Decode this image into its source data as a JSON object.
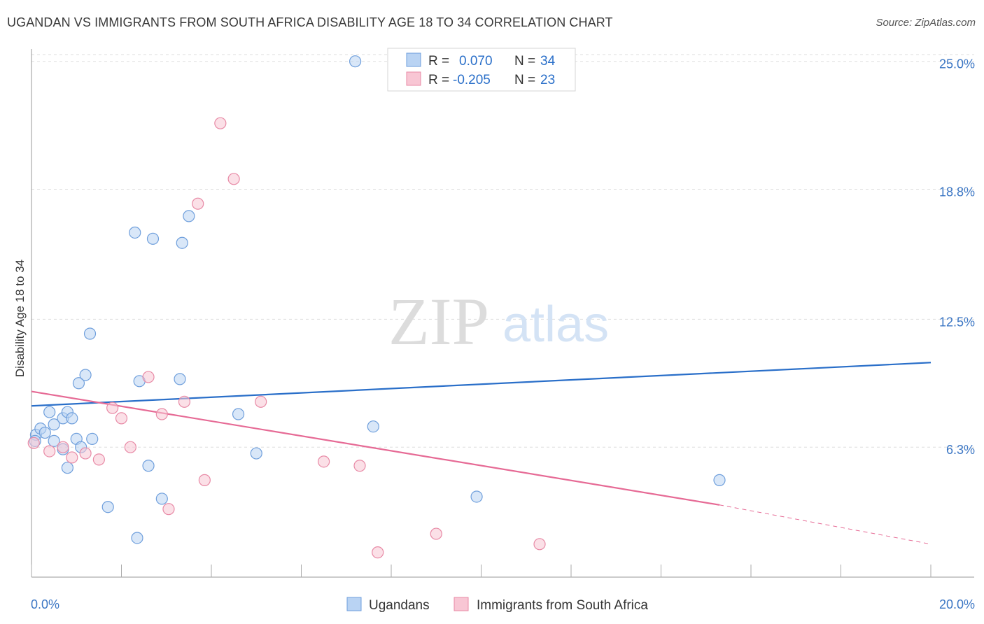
{
  "header": {
    "title": "UGANDAN VS IMMIGRANTS FROM SOUTH AFRICA DISABILITY AGE 18 TO 34 CORRELATION CHART",
    "source": "Source: ZipAtlas.com"
  },
  "watermark": {
    "zip": "ZIP",
    "atlas": "atlas"
  },
  "colors": {
    "blue_fill": "#b9d3f3",
    "blue_stroke": "#6f9fdc",
    "blue_line": "#2a6fc9",
    "pink_fill": "#f8c6d4",
    "pink_stroke": "#e88aa6",
    "pink_line": "#e66a95",
    "tick_text": "#3b76c4",
    "grid": "#dddddd"
  },
  "legend": {
    "items": [
      {
        "r_label": "R =",
        "r_value": "0.070",
        "n_label": "N =",
        "n_value": "34"
      },
      {
        "r_label": "R =",
        "r_value": "-0.205",
        "n_label": "N =",
        "n_value": "23"
      }
    ]
  },
  "chart_data": {
    "type": "scatter",
    "title": "UGANDAN VS IMMIGRANTS FROM SOUTH AFRICA DISABILITY AGE 18 TO 34 CORRELATION CHART",
    "xlabel": "",
    "ylabel": "Disability Age 18 to 34",
    "xlim": [
      0,
      20
    ],
    "ylim": [
      0,
      25.6
    ],
    "x_tick_labels": [
      "0.0%",
      "20.0%"
    ],
    "y_ticks": [
      6.3,
      12.5,
      18.8,
      25.0
    ],
    "y_tick_labels": [
      "6.3%",
      "12.5%",
      "18.8%",
      "25.0%"
    ],
    "grid": true,
    "legend_position": "bottom-center",
    "series": [
      {
        "name": "Ugandans",
        "color": "#6f9fdc",
        "points": [
          [
            0.1,
            6.9
          ],
          [
            0.2,
            7.2
          ],
          [
            0.3,
            7.0
          ],
          [
            0.4,
            8.0
          ],
          [
            0.5,
            6.6
          ],
          [
            0.5,
            7.4
          ],
          [
            0.7,
            6.2
          ],
          [
            0.7,
            7.7
          ],
          [
            0.8,
            8.0
          ],
          [
            0.8,
            5.3
          ],
          [
            0.9,
            7.7
          ],
          [
            1.0,
            6.7
          ],
          [
            1.05,
            9.4
          ],
          [
            1.1,
            6.3
          ],
          [
            1.2,
            9.8
          ],
          [
            1.3,
            11.8
          ],
          [
            1.35,
            6.7
          ],
          [
            1.7,
            3.4
          ],
          [
            2.3,
            16.7
          ],
          [
            2.35,
            1.9
          ],
          [
            2.4,
            9.5
          ],
          [
            2.6,
            5.4
          ],
          [
            2.7,
            16.4
          ],
          [
            2.9,
            3.8
          ],
          [
            3.3,
            9.6
          ],
          [
            3.35,
            16.2
          ],
          [
            3.5,
            17.5
          ],
          [
            4.6,
            7.9
          ],
          [
            5.0,
            6.0
          ],
          [
            7.2,
            25.0
          ],
          [
            7.6,
            7.3
          ],
          [
            9.9,
            3.9
          ],
          [
            15.3,
            4.7
          ],
          [
            0.08,
            6.6
          ]
        ]
      },
      {
        "name": "Immigrants from South Africa",
        "color": "#e88aa6",
        "points": [
          [
            0.05,
            6.5
          ],
          [
            0.4,
            6.1
          ],
          [
            0.7,
            6.3
          ],
          [
            0.9,
            5.8
          ],
          [
            1.2,
            6.0
          ],
          [
            1.5,
            5.7
          ],
          [
            1.8,
            8.2
          ],
          [
            2.0,
            7.7
          ],
          [
            2.2,
            6.3
          ],
          [
            2.6,
            9.7
          ],
          [
            2.9,
            7.9
          ],
          [
            3.05,
            3.3
          ],
          [
            3.4,
            8.5
          ],
          [
            3.7,
            18.1
          ],
          [
            3.85,
            4.7
          ],
          [
            4.2,
            22.0
          ],
          [
            4.5,
            19.3
          ],
          [
            5.1,
            8.5
          ],
          [
            6.5,
            5.6
          ],
          [
            7.3,
            5.4
          ],
          [
            7.7,
            1.2
          ],
          [
            9.0,
            2.1
          ],
          [
            11.3,
            1.6
          ]
        ]
      }
    ],
    "trendlines": [
      {
        "series": "Ugandans",
        "from": [
          0,
          8.3
        ],
        "to": [
          20,
          10.4
        ],
        "style": "solid"
      },
      {
        "series": "Immigrants from South Africa",
        "from": [
          0,
          9.0
        ],
        "to": [
          15.3,
          3.5
        ],
        "style": "solid"
      },
      {
        "series": "Immigrants from South Africa",
        "from": [
          15.3,
          3.5
        ],
        "to": [
          20,
          1.6
        ],
        "style": "dashed"
      }
    ]
  }
}
